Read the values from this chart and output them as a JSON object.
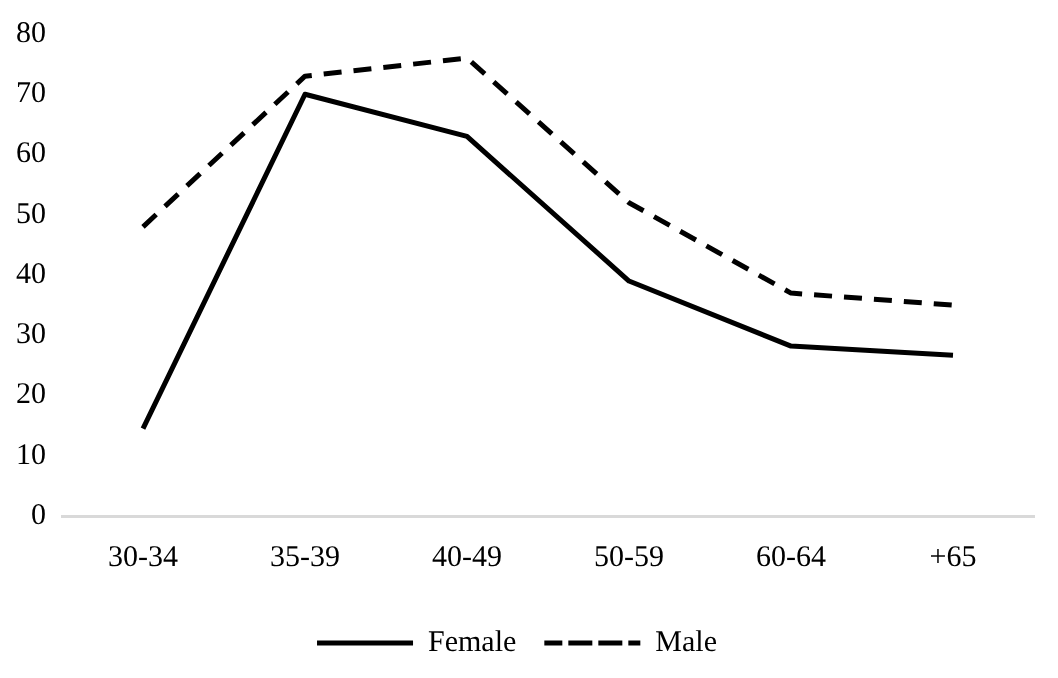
{
  "chart_data": {
    "type": "line",
    "categories": [
      "30-34",
      "35-39",
      "40-49",
      "50-59",
      "60-64",
      "+65"
    ],
    "series": [
      {
        "name": "Female",
        "color": "#000000",
        "line_style": "solid",
        "values": [
          14.5,
          70,
          63,
          39,
          28.2,
          26.7
        ]
      },
      {
        "name": "Male",
        "color": "#000000",
        "line_style": "dashed",
        "values": [
          48,
          73,
          76,
          52,
          37,
          35
        ]
      }
    ],
    "ylim": [
      0,
      80
    ],
    "yticks": [
      0,
      10,
      20,
      30,
      40,
      50,
      60,
      70,
      80
    ],
    "grid": false,
    "legend": "bottom",
    "marker": "none"
  }
}
